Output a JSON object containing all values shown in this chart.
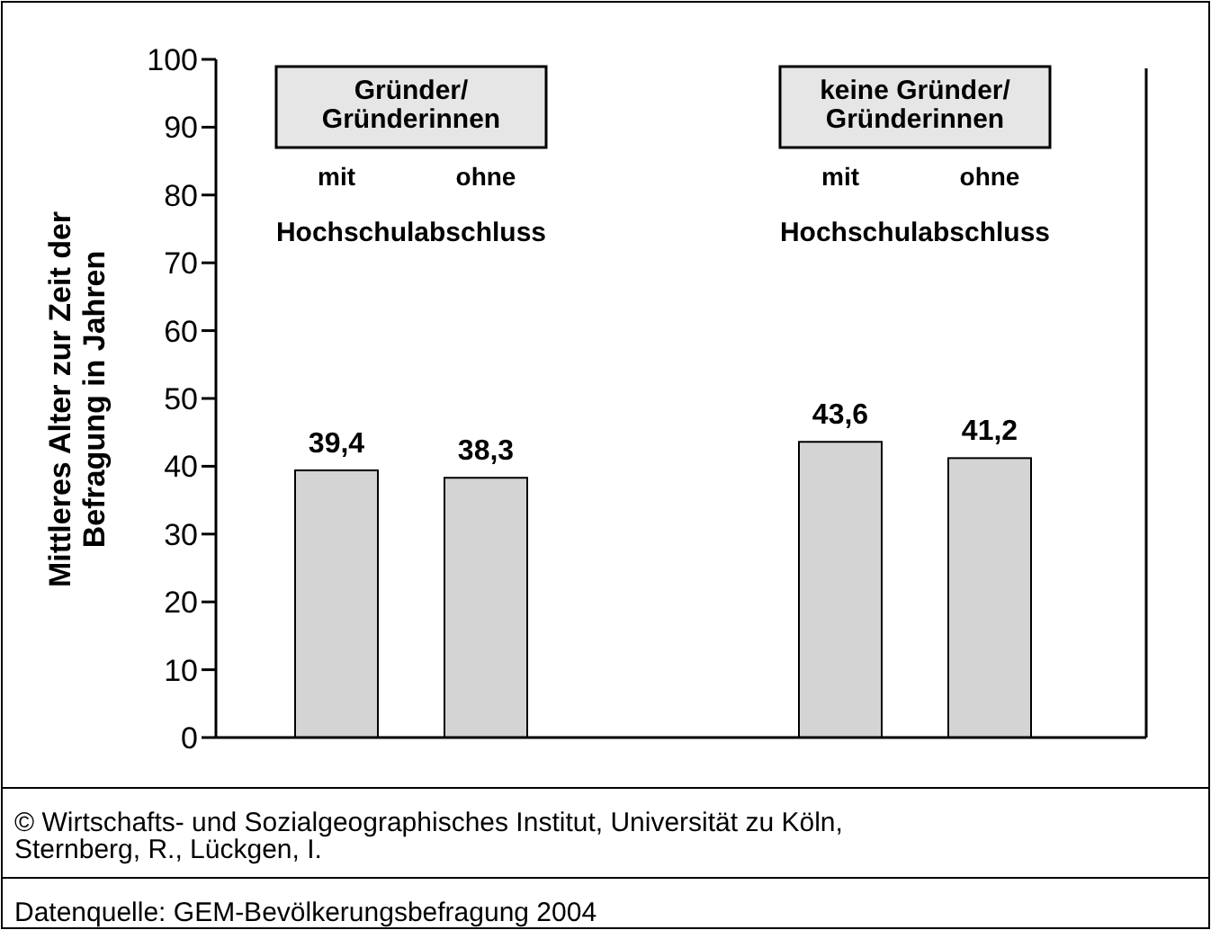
{
  "chart_data": {
    "type": "bar",
    "ylabel": "Mittleres Alter zur Zeit der\nBefragung in Jahren",
    "categories": [
      "mit",
      "ohne",
      "mit",
      "ohne"
    ],
    "values": [
      39.4,
      38.3,
      43.6,
      41.2
    ],
    "color": "#d4d4d4",
    "value_labels": [
      "39,4",
      "38,3",
      "43,6",
      "41,2"
    ],
    "ylim": [
      0,
      100
    ],
    "yticks": [
      0,
      10,
      20,
      30,
      40,
      50,
      60,
      70,
      80,
      90,
      100
    ],
    "grid": false,
    "annotations": [
      "Gründer/\nGründerinnen",
      "keine Gründer/\nGründerinnen",
      "Hochschulabschluss",
      "Hochschulabschluss",
      "© Wirtschafts- und Sozialgeographisches Institut, Universität zu Köln,\nSternberg, R., Lückgen, I.",
      "Datenquelle: GEM-Bevölkerungsbefragung 2004"
    ]
  }
}
